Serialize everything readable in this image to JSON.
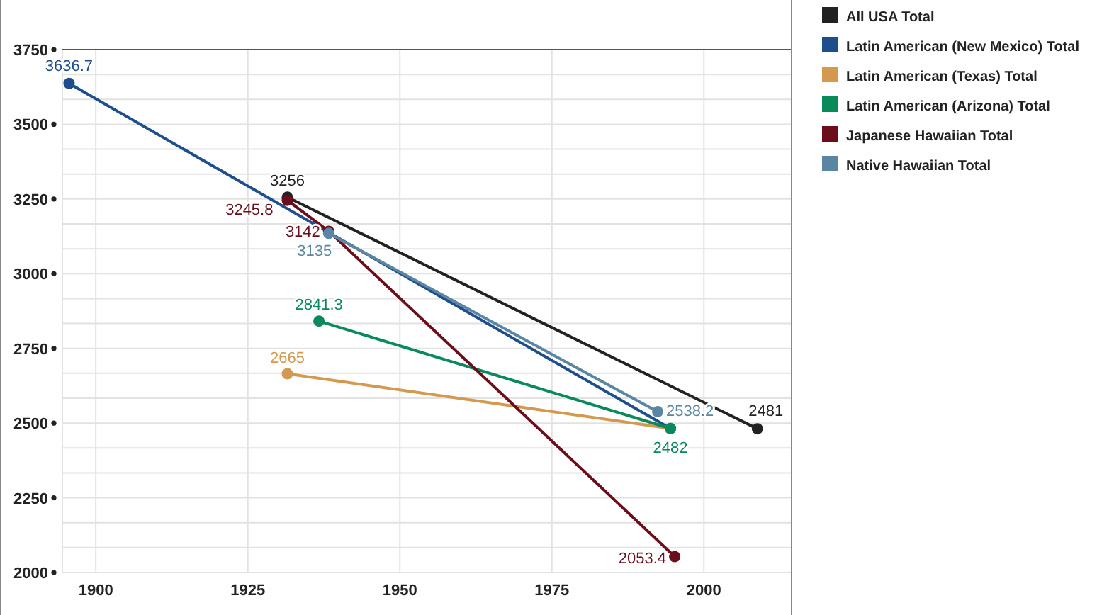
{
  "chart_data": {
    "type": "line",
    "xlim": [
      1894.5,
      2014.3
    ],
    "ylim": [
      2000,
      3750
    ],
    "xticks": [
      1900,
      1925,
      1950,
      1975,
      2000
    ],
    "yticks": [
      2000,
      {
        "value": 2083.33,
        "label": null
      },
      {
        "value": 2166.67,
        "label": null
      },
      2250,
      {
        "value": 2333.33,
        "label": null
      },
      {
        "value": 2416.67,
        "label": null
      },
      2500,
      {
        "value": 2583.33,
        "label": null
      },
      {
        "value": 2666.67,
        "label": null
      },
      2750,
      {
        "value": 2833.33,
        "label": null
      },
      {
        "value": 2916.67,
        "label": null
      },
      3000,
      {
        "value": 3083.33,
        "label": null
      },
      {
        "value": 3166.67,
        "label": null
      },
      3250,
      {
        "value": 3333.33,
        "label": null
      },
      {
        "value": 3416.67,
        "label": null
      },
      3500,
      {
        "value": 3583.33,
        "label": null
      },
      {
        "value": 3666.67,
        "label": null
      },
      3750
    ],
    "grid": true,
    "legend": "top right",
    "marker": "circle",
    "series": [
      {
        "name": "All USA Total",
        "color": "#222222",
        "x": [
          1931.5,
          2008.8
        ],
        "values": [
          3256,
          2481
        ],
        "value_labels": [
          "3256",
          "2481"
        ]
      },
      {
        "name": "Latin American (New Mexico) Total",
        "color": "#1f4e8c",
        "x": [
          1895.6,
          1994.5
        ],
        "values": [
          3636.7,
          2482
        ],
        "value_labels": [
          "3636.7",
          null
        ]
      },
      {
        "name": "Latin American (Texas) Total",
        "color": "#d4994f",
        "x": [
          1931.5,
          1994.5
        ],
        "values": [
          2665,
          2482
        ],
        "value_labels": [
          "2665",
          null
        ]
      },
      {
        "name": "Latin American (Arizona) Total",
        "color": "#0a8a5a",
        "x": [
          1936.7,
          1994.5
        ],
        "values": [
          2841.3,
          2482
        ],
        "value_labels": [
          "2841.3",
          "2482"
        ]
      },
      {
        "name": "Japanese Hawaiian Total",
        "color": "#6b0d1a",
        "x": [
          1931.5,
          1938.3,
          1995.2
        ],
        "values": [
          3245.8,
          3142,
          2053.4
        ],
        "value_labels": [
          "3245.8",
          "3142",
          "2053.4"
        ]
      },
      {
        "name": "Native Hawaiian Total",
        "color": "#5b86a3",
        "x": [
          1938.3,
          1992.4
        ],
        "values": [
          3135,
          2538.2
        ],
        "value_labels": [
          "3135",
          "2538.2"
        ]
      }
    ]
  }
}
